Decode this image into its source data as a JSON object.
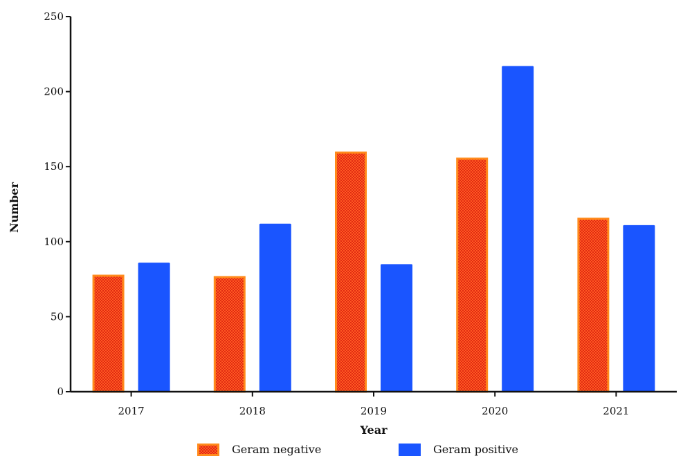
{
  "chart_data": {
    "type": "bar",
    "categories": [
      "2017",
      "2018",
      "2019",
      "2020",
      "2021"
    ],
    "series": [
      {
        "name": "Geram negative",
        "values": [
          78,
          77,
          160,
          156,
          116
        ],
        "color": "#ff4a1c",
        "stroke": "#ff8a1c",
        "pattern": "checkered"
      },
      {
        "name": "Geram positive",
        "values": [
          86,
          112,
          85,
          217,
          111
        ],
        "color": "#1a55ff"
      }
    ],
    "xlabel": "Year",
    "ylabel": "Number",
    "ylim": [
      0,
      250
    ],
    "yticks": [
      0,
      50,
      100,
      150,
      200,
      250
    ],
    "grid": false,
    "legend_position": "bottom"
  }
}
